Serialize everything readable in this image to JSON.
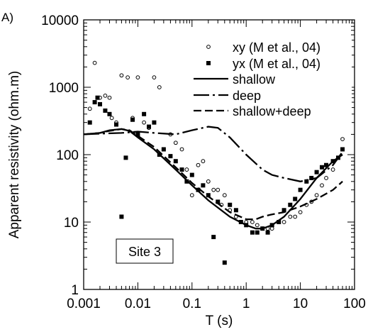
{
  "chart_data": {
    "type": "scatter",
    "panel_label": "A)",
    "xlabel": "T (s)",
    "ylabel": "Apparent resistivity (ohm.m)",
    "xscale": "log",
    "yscale": "log",
    "xlim": [
      0.001,
      100
    ],
    "ylim": [
      1,
      10000
    ],
    "x_tick_labels": [
      "0.001",
      "0.01",
      "0.1",
      "1",
      "10",
      "100"
    ],
    "y_tick_labels": [
      "1",
      "10",
      "100",
      "1000",
      "10000"
    ],
    "legend_position": "top-right",
    "annotation": "Site 3",
    "grid": false,
    "series": [
      {
        "name": "xy (M et al., 04)",
        "kind": "points",
        "marker": "open-circle",
        "x": [
          0.0013,
          0.0016,
          0.002,
          0.0025,
          0.003,
          0.0033,
          0.004,
          0.005,
          0.0065,
          0.008,
          0.01,
          0.013,
          0.016,
          0.02,
          0.025,
          0.03,
          0.04,
          0.05,
          0.065,
          0.08,
          0.1,
          0.13,
          0.16,
          0.2,
          0.25,
          0.3,
          0.35,
          0.4,
          0.5,
          0.65,
          0.8,
          1.0,
          1.3,
          1.6,
          2.0,
          2.5,
          3.0,
          4.0,
          5.0,
          6.5,
          8.0,
          10,
          13,
          16,
          20,
          25,
          30,
          40,
          50,
          60
        ],
        "y": [
          480,
          2300,
          700,
          750,
          700,
          350,
          300,
          1500,
          1400,
          350,
          1400,
          300,
          250,
          1400,
          1000,
          120,
          200,
          150,
          120,
          60,
          25,
          70,
          80,
          40,
          30,
          30,
          18,
          25,
          15,
          12,
          10,
          10,
          10,
          9,
          8,
          8,
          8,
          10,
          10,
          12,
          12,
          14,
          18,
          20,
          25,
          35,
          45,
          60,
          90,
          170
        ]
      },
      {
        "name": "yx (M et al., 04)",
        "kind": "points",
        "marker": "filled-square",
        "x": [
          0.0013,
          0.0016,
          0.0018,
          0.002,
          0.0025,
          0.003,
          0.004,
          0.005,
          0.006,
          0.008,
          0.01,
          0.013,
          0.016,
          0.02,
          0.025,
          0.03,
          0.04,
          0.05,
          0.065,
          0.08,
          0.1,
          0.13,
          0.16,
          0.2,
          0.25,
          0.3,
          0.4,
          0.5,
          0.65,
          0.8,
          1.0,
          1.3,
          1.6,
          2.0,
          2.5,
          3.0,
          4.0,
          5.0,
          6.5,
          8.0,
          10,
          13,
          16,
          20,
          25,
          30,
          40,
          50,
          60
        ],
        "y": [
          300,
          600,
          700,
          560,
          450,
          400,
          280,
          12,
          90,
          330,
          200,
          400,
          260,
          300,
          100,
          120,
          95,
          80,
          60,
          40,
          50,
          30,
          35,
          25,
          6,
          20,
          2.5,
          18,
          15,
          10,
          9,
          7,
          7,
          8,
          7,
          9,
          10,
          15,
          18,
          22,
          30,
          40,
          45,
          55,
          65,
          70,
          80,
          90,
          120
        ]
      },
      {
        "name": "shallow",
        "kind": "line",
        "dash": "solid",
        "x": [
          0.001,
          0.002,
          0.003,
          0.005,
          0.007,
          0.01,
          0.02,
          0.05,
          0.1,
          0.2,
          0.5,
          1.0,
          1.5,
          2.0,
          3.0,
          5.0,
          10,
          20,
          40,
          60
        ],
        "y": [
          200,
          210,
          230,
          240,
          225,
          180,
          120,
          60,
          35,
          21,
          12,
          9,
          8,
          8,
          9,
          12,
          22,
          45,
          80,
          100
        ]
      },
      {
        "name": "deep",
        "kind": "line",
        "dash": "long-dash-dot",
        "x": [
          0.001,
          0.002,
          0.005,
          0.01,
          0.02,
          0.05,
          0.1,
          0.2,
          0.3,
          0.5,
          1.0,
          2.0,
          3.0,
          5.0,
          10,
          20,
          40,
          60
        ],
        "y": [
          200,
          205,
          210,
          220,
          210,
          200,
          230,
          260,
          250,
          180,
          100,
          60,
          50,
          45,
          40,
          45,
          70,
          110
        ]
      },
      {
        "name": "shallow+deep",
        "kind": "line",
        "dash": "dash",
        "x": [
          0.001,
          0.002,
          0.003,
          0.005,
          0.007,
          0.01,
          0.02,
          0.05,
          0.1,
          0.2,
          0.5,
          1.0,
          1.5,
          2.0,
          3.0,
          5.0,
          10,
          20,
          40,
          60
        ],
        "y": [
          200,
          210,
          225,
          240,
          230,
          190,
          130,
          65,
          38,
          24,
          14,
          11,
          11,
          12,
          13,
          14,
          17,
          22,
          30,
          40
        ]
      }
    ]
  }
}
